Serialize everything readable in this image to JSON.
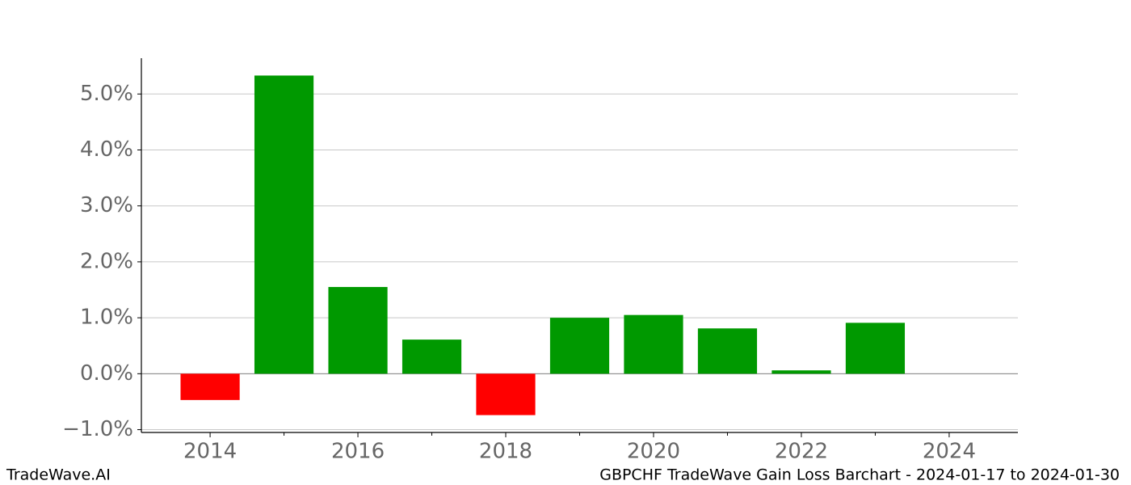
{
  "chart_data": {
    "type": "bar",
    "x": [
      2014,
      2015,
      2016,
      2017,
      2018,
      2019,
      2020,
      2021,
      2022,
      2023
    ],
    "values": [
      -0.47,
      5.33,
      1.55,
      0.61,
      -0.74,
      1.0,
      1.05,
      0.81,
      0.06,
      0.91
    ],
    "colors": {
      "positive": "#009900",
      "negative": "#ff0000"
    },
    "xlim": [
      2013.07,
      2024.93
    ],
    "xticks": [
      2014,
      2016,
      2018,
      2020,
      2022,
      2024
    ],
    "xminorticks": [
      2015,
      2017,
      2019,
      2021,
      2023
    ],
    "ylim": [
      -1.05,
      5.64
    ],
    "yticks": [
      {
        "value": -1,
        "label": "−1.0%"
      },
      {
        "value": 0,
        "label": "0.0%"
      },
      {
        "value": 1,
        "label": "1.0%"
      },
      {
        "value": 2,
        "label": "2.0%"
      },
      {
        "value": 3,
        "label": "3.0%"
      },
      {
        "value": 4,
        "label": "4.0%"
      },
      {
        "value": 5,
        "label": "5.0%"
      }
    ],
    "grid": true,
    "watermark": "TradeWave.AI",
    "caption": "GBPCHF TradeWave Gain Loss Barchart - 2024-01-17 to 2024-01-30"
  }
}
